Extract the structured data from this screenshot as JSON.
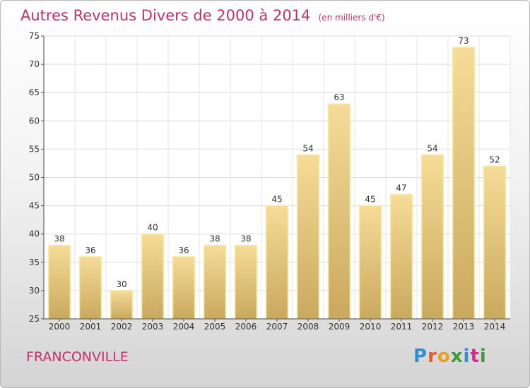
{
  "header": {
    "title": "Autres Revenus Divers de 2000 à 2014",
    "subtitle": "(en milliers d'€)"
  },
  "footer": {
    "city": "FRANCONVILLE",
    "logo_text": "Proxiti",
    "logo_colors": [
      "#2f8fd0",
      "#e65a2a",
      "#e8a020",
      "#3a9c3a",
      "#2f8fd0",
      "#d0308a",
      "#3a9c3a"
    ]
  },
  "chart_data": {
    "type": "bar",
    "categories": [
      "2000",
      "2001",
      "2002",
      "2003",
      "2004",
      "2005",
      "2006",
      "2007",
      "2008",
      "2009",
      "2010",
      "2011",
      "2012",
      "2013",
      "2014"
    ],
    "values": [
      38,
      36,
      30,
      40,
      36,
      38,
      38,
      45,
      54,
      63,
      45,
      47,
      54,
      73,
      52
    ],
    "ylim": [
      25,
      75
    ],
    "yticks": [
      25,
      30,
      35,
      40,
      45,
      50,
      55,
      60,
      65,
      70,
      75
    ],
    "grid": true,
    "bar_color": "#e8c97a",
    "bar_edge_color": "#fbe9a8"
  }
}
